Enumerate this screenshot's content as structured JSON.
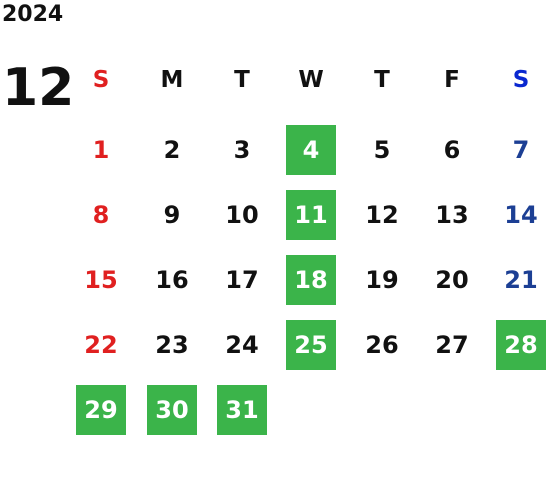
{
  "year": "2024",
  "month": "12",
  "highlight_color": "#3bb44a",
  "highlight_text_color": "#ffffff",
  "weekdays": [
    {
      "label": "S",
      "color": "#e02020",
      "day_color": "#e02020"
    },
    {
      "label": "M",
      "color": "#111111",
      "day_color": "#111111"
    },
    {
      "label": "T",
      "color": "#111111",
      "day_color": "#111111"
    },
    {
      "label": "W",
      "color": "#111111",
      "day_color": "#111111"
    },
    {
      "label": "T",
      "color": "#111111",
      "day_color": "#111111"
    },
    {
      "label": "F",
      "color": "#111111",
      "day_color": "#111111"
    },
    {
      "label": "S",
      "color": "#0a28d0",
      "day_color": "#1c3f94"
    }
  ],
  "weeks": [
    [
      {
        "day": 1
      },
      {
        "day": 2
      },
      {
        "day": 3
      },
      {
        "day": 4,
        "highlight": true
      },
      {
        "day": 5
      },
      {
        "day": 6
      },
      {
        "day": 7
      }
    ],
    [
      {
        "day": 8
      },
      {
        "day": 9
      },
      {
        "day": 10
      },
      {
        "day": 11,
        "highlight": true
      },
      {
        "day": 12
      },
      {
        "day": 13
      },
      {
        "day": 14
      }
    ],
    [
      {
        "day": 15
      },
      {
        "day": 16
      },
      {
        "day": 17
      },
      {
        "day": 18,
        "highlight": true
      },
      {
        "day": 19
      },
      {
        "day": 20
      },
      {
        "day": 21
      }
    ],
    [
      {
        "day": 22
      },
      {
        "day": 23
      },
      {
        "day": 24
      },
      {
        "day": 25,
        "highlight": true
      },
      {
        "day": 26
      },
      {
        "day": 27
      },
      {
        "day": 28,
        "highlight": true
      }
    ],
    [
      {
        "day": 29,
        "highlight": true
      },
      {
        "day": 30,
        "highlight": true
      },
      {
        "day": 31,
        "highlight": true
      }
    ]
  ]
}
